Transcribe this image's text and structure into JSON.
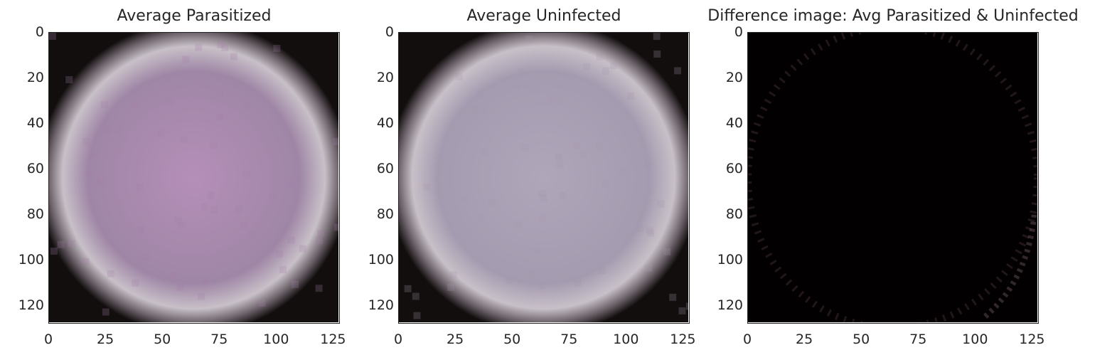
{
  "chart_data": [
    {
      "type": "heatmap",
      "title": "Average Parasitized",
      "xlabel": "",
      "ylabel": "",
      "xlim": [
        0,
        128
      ],
      "ylim": [
        128,
        0
      ],
      "xticks": [
        "0",
        "25",
        "50",
        "75",
        "100",
        "125"
      ],
      "yticks": [
        "0",
        "20",
        "40",
        "60",
        "80",
        "100",
        "120"
      ],
      "image": {
        "kind": "rgb",
        "description_color_center": "#b08fb3",
        "edge_color": "#141010",
        "mean_cell": "light purple disk on black"
      },
      "grid": false
    },
    {
      "type": "heatmap",
      "title": "Average Uninfected",
      "xlabel": "",
      "ylabel": "",
      "xlim": [
        0,
        128
      ],
      "ylim": [
        128,
        0
      ],
      "xticks": [
        "0",
        "25",
        "50",
        "75",
        "100",
        "125"
      ],
      "yticks": [
        "0",
        "20",
        "40",
        "60",
        "80",
        "100",
        "120"
      ],
      "image": {
        "kind": "rgb",
        "description_color_center": "#ada2b6",
        "edge_color": "#141010",
        "mean_cell": "light lavender-grey disk on black"
      },
      "grid": false
    },
    {
      "type": "heatmap",
      "title": "Difference image: Avg Parasitized & Uninfected",
      "xlabel": "",
      "ylabel": "",
      "xlim": [
        0,
        128
      ],
      "ylim": [
        128,
        0
      ],
      "xticks": [
        "0",
        "25",
        "50",
        "75",
        "100",
        "125"
      ],
      "yticks": [
        "0",
        "20",
        "40",
        "60",
        "80",
        "100",
        "120"
      ],
      "image": {
        "kind": "rgb",
        "description_color_center": "#020002",
        "edge_color": "#2a1a22",
        "mean_cell": "near-black difference with faint ring"
      },
      "grid": false
    }
  ],
  "colors": {
    "parasitized_center": "#b58fb8",
    "parasitized_mid": "#9f86a6",
    "uninfected_center": "#b0a6ba",
    "uninfected_mid": "#a59bb0",
    "dark_edge": "#120e0e",
    "difference_bg": "#030002",
    "difference_ring": "#3a2a32"
  }
}
